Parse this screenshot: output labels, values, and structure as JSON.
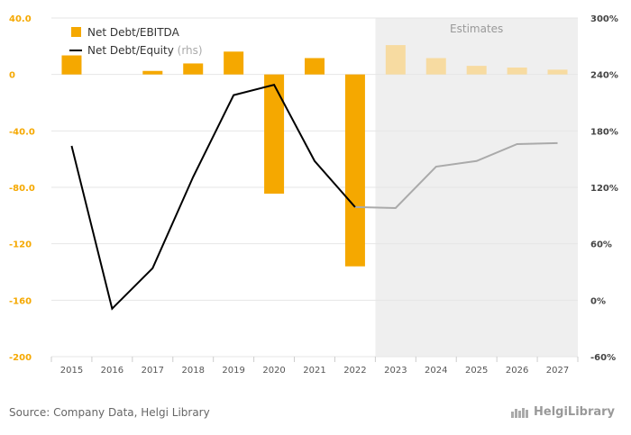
{
  "chart_data": {
    "type": "bar+line",
    "categories": [
      "2015",
      "2016",
      "2017",
      "2018",
      "2019",
      "2020",
      "2021",
      "2022",
      "2023",
      "2024",
      "2025",
      "2026",
      "2027"
    ],
    "estimate_start_index": 8,
    "estimates_label": "Estimates",
    "series": [
      {
        "name": "Net Debt/EBITDA",
        "type": "bar",
        "axis": "left",
        "color": "#f5a800",
        "estimate_color": "#f7dba1",
        "values": [
          13.5,
          0,
          2.5,
          7.8,
          16.2,
          -84.5,
          11.6,
          -136.0,
          20.8,
          11.6,
          6.1,
          4.9,
          3.4
        ]
      },
      {
        "name": "Net Debt/Equity",
        "name_suffix": "(rhs)",
        "type": "line",
        "axis": "right",
        "color": "#000000",
        "estimate_color": "#aaaaaa",
        "values": [
          164,
          -9,
          34,
          131,
          218,
          229,
          148,
          99,
          98,
          142,
          148,
          166,
          167
        ]
      }
    ],
    "y_left": {
      "min": -200,
      "max": 40,
      "ticks": [
        40,
        0,
        -40,
        -80,
        -120,
        -160,
        -200
      ],
      "tick_labels": [
        "40.0",
        "0",
        "-40.0",
        "-80.0",
        "-120",
        "-160",
        "-200"
      ]
    },
    "y_right": {
      "min": -60,
      "max": 300,
      "ticks": [
        300,
        240,
        180,
        120,
        60,
        0,
        -60
      ],
      "tick_labels": [
        "300%",
        "240%",
        "180%",
        "120%",
        "60%",
        "0%",
        "-60%"
      ]
    },
    "legend_position": "top-left",
    "grid": true
  },
  "footer": {
    "source": "Source: Company Data, Helgi Library",
    "logo_text": "HelgiLibrary"
  }
}
